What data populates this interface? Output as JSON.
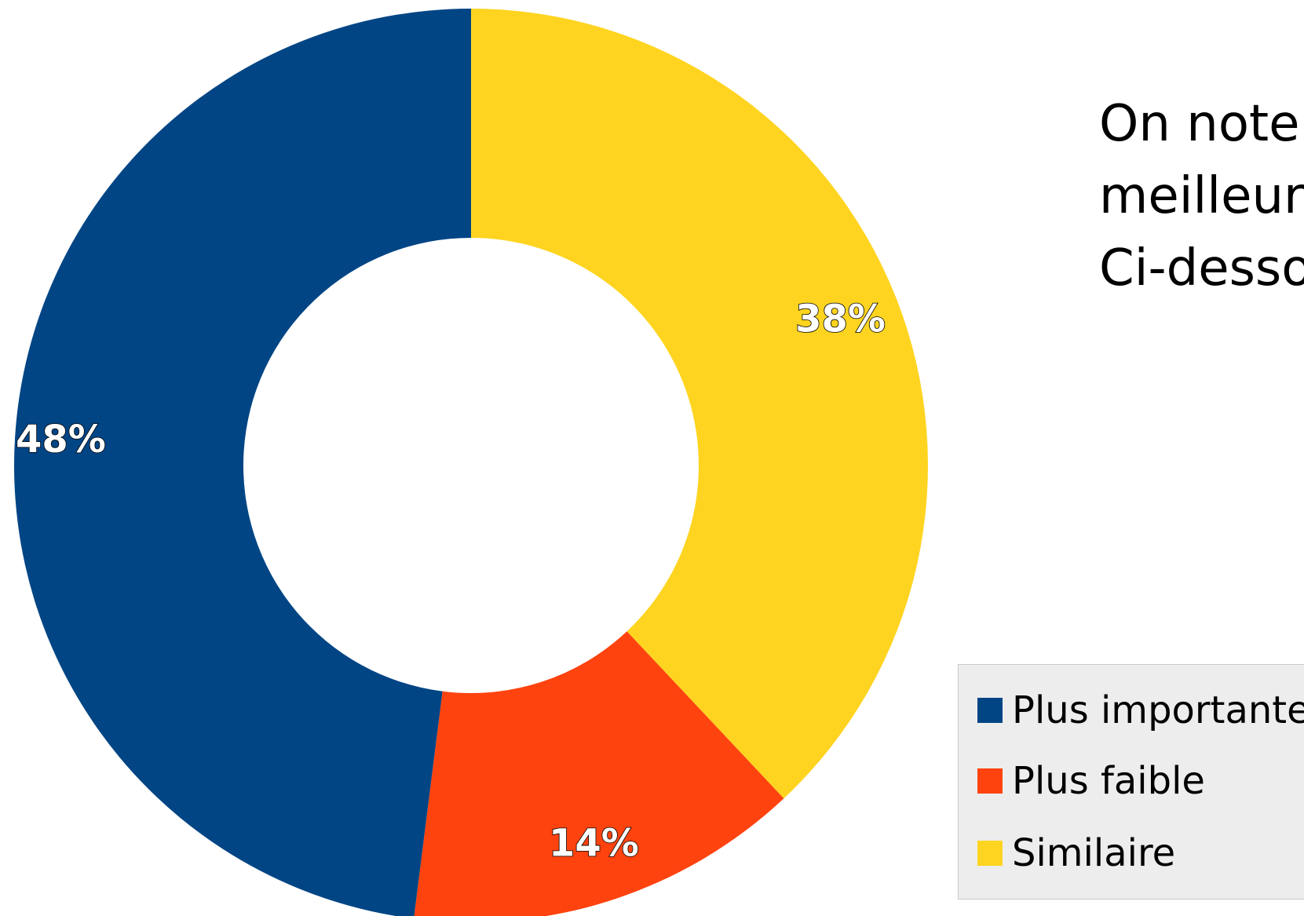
{
  "chart_data": {
    "type": "pie",
    "donut": true,
    "categories": [
      "Plus importante",
      "Plus faible",
      "Similaire"
    ],
    "values": [
      48,
      14,
      38
    ],
    "value_labels": [
      "48%",
      "14%",
      "38%"
    ],
    "colors": [
      "#014585",
      "#fe430f",
      "#fed420"
    ],
    "start": "top, clockwise: Similaire, Plus faible, Plus importante",
    "legend": {
      "placement": "bottom-right",
      "entries": [
        "Plus importante",
        "Plus faible",
        "Similaire"
      ]
    }
  },
  "side_text": {
    "lines": [
      "On note",
      "meilleur",
      "Ci-desso"
    ]
  }
}
